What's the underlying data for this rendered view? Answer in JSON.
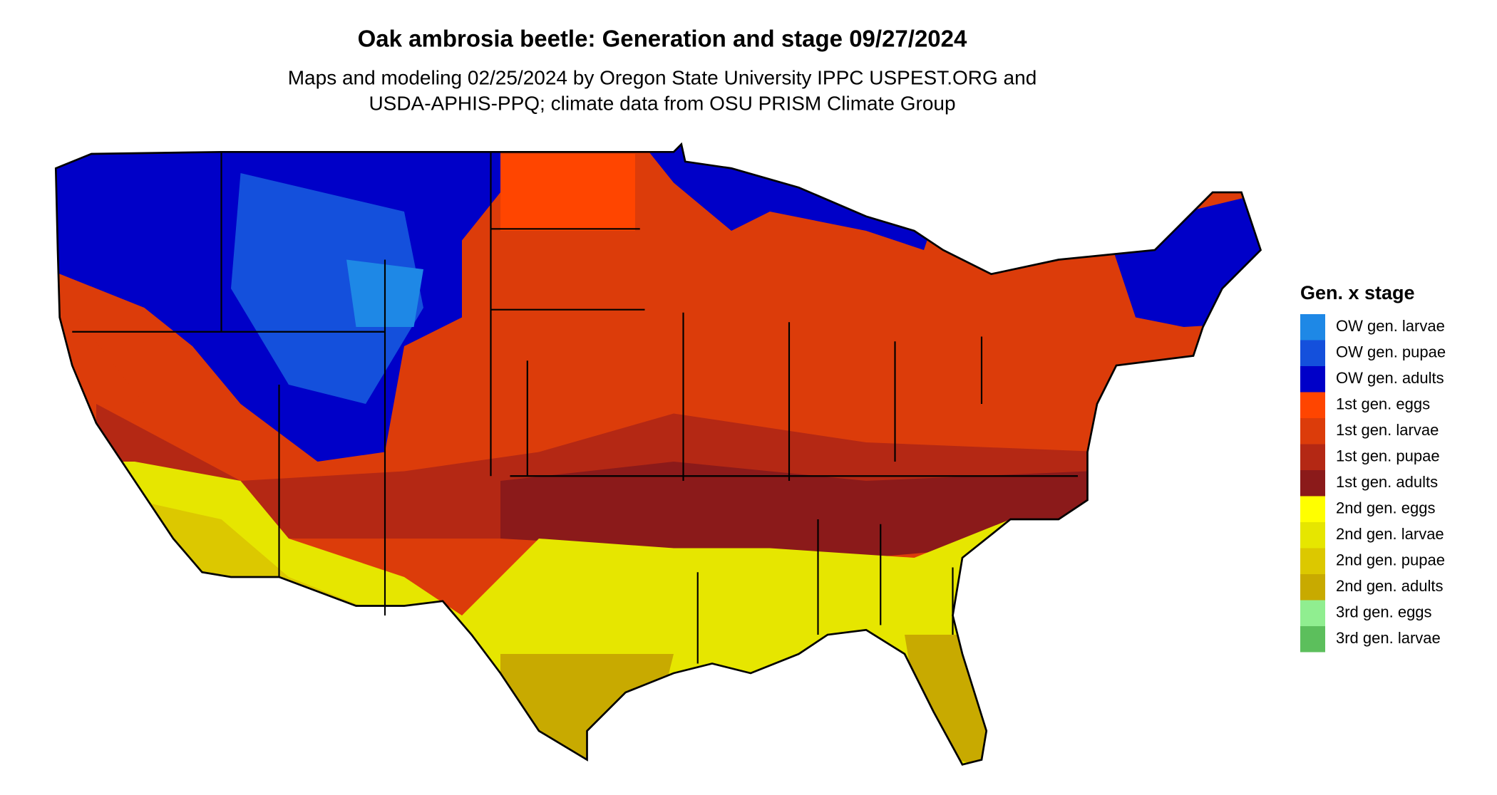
{
  "title": "Oak ambrosia beetle: Generation and stage 09/27/2024",
  "subtitle_lines": [
    "Maps and modeling 02/25/2024 by Oregon State University IPPC USPEST.ORG and",
    "USDA-APHIS-PPQ; climate data from OSU PRISM Climate Group"
  ],
  "legend": {
    "title": "Gen. x stage",
    "items": [
      {
        "label": "OW gen. larvae",
        "color": "#1e88e6"
      },
      {
        "label": "OW gen. pupae",
        "color": "#1450dc"
      },
      {
        "label": "OW gen. adults",
        "color": "#0000c8"
      },
      {
        "label": "1st gen. eggs",
        "color": "#ff4500"
      },
      {
        "label": "1st gen. larvae",
        "color": "#dc3c0a"
      },
      {
        "label": "1st gen. pupae",
        "color": "#b42814"
      },
      {
        "label": "1st gen. adults",
        "color": "#8b1a1a"
      },
      {
        "label": "2nd gen. eggs",
        "color": "#ffff00"
      },
      {
        "label": "2nd gen. larvae",
        "color": "#e6e600"
      },
      {
        "label": "2nd gen. pupae",
        "color": "#dcc800"
      },
      {
        "label": "2nd gen. adults",
        "color": "#c8aa00"
      },
      {
        "label": "3rd gen. eggs",
        "color": "#90ee90"
      },
      {
        "label": "3rd gen. larvae",
        "color": "#5cbf5c"
      }
    ]
  }
}
